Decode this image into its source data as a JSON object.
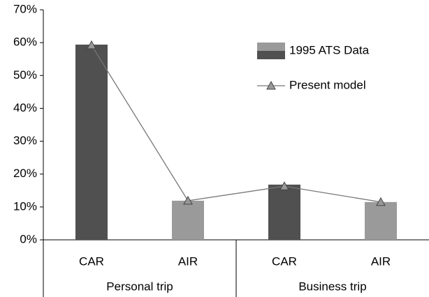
{
  "chart_data": {
    "type": "bar",
    "categories": [
      "CAR",
      "AIR",
      "CAR",
      "AIR"
    ],
    "groups": [
      "Personal trip",
      "Business trip"
    ],
    "series": [
      {
        "name": "1995 ATS Data",
        "type": "bar",
        "colors": [
          "#505050",
          "#9a9a9a",
          "#505050",
          "#9a9a9a"
        ],
        "values": [
          59.4,
          11.9,
          16.8,
          11.5
        ]
      },
      {
        "name": "Present model",
        "type": "line",
        "color": "#777777",
        "values": [
          59.2,
          11.9,
          16.3,
          11.5
        ]
      }
    ],
    "ylim": [
      0,
      70
    ],
    "yticks": [
      {
        "value": 0,
        "label": "0%"
      },
      {
        "value": 10,
        "label": "10%"
      },
      {
        "value": 20,
        "label": "20%"
      },
      {
        "value": 30,
        "label": "30%"
      },
      {
        "value": 40,
        "label": "40%"
      },
      {
        "value": 50,
        "label": "50%"
      },
      {
        "value": 60,
        "label": "60%"
      },
      {
        "value": 70,
        "label": "70%"
      }
    ],
    "grid": false
  }
}
